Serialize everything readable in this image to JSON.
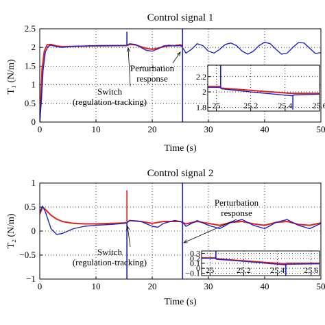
{
  "chart_data": [
    {
      "type": "line",
      "title": "Control signal 1",
      "xlabel": "Time (s)",
      "ylabel": "T₁ (N/m)",
      "xlim": [
        0,
        50
      ],
      "ylim": [
        0,
        2.5
      ],
      "x_ticks": [
        "0",
        "10",
        "20",
        "30",
        "40",
        "50"
      ],
      "y_ticks": [
        "0",
        "0.5",
        "1",
        "1.5",
        "2",
        "2.5"
      ],
      "grid": true,
      "switch_time": 15.5,
      "perturbation_time": 25.4,
      "series": [
        {
          "color": "#e02020",
          "points": [
            [
              0,
              0
            ],
            [
              0.4,
              1.4
            ],
            [
              0.8,
              1.9
            ],
            [
              1.3,
              2.07
            ],
            [
              2,
              2.08
            ],
            [
              3,
              2.04
            ],
            [
              4,
              2.02
            ],
            [
              6,
              2.03
            ],
            [
              10,
              2.04
            ],
            [
              15,
              2.05
            ],
            [
              15.5,
              2.05
            ],
            [
              16,
              2.08
            ],
            [
              17,
              2.07
            ],
            [
              18,
              2.02
            ],
            [
              19,
              1.97
            ],
            [
              20,
              1.95
            ],
            [
              21,
              1.98
            ],
            [
              22,
              2.02
            ],
            [
              23,
              2.04
            ],
            [
              24,
              2.05
            ],
            [
              25,
              2.07
            ],
            [
              25.4,
              2.05
            ]
          ]
        },
        {
          "color": "#2020c0",
          "points": [
            [
              0,
              0
            ],
            [
              0.3,
              0.6
            ],
            [
              0.6,
              1.4
            ],
            [
              1,
              1.88
            ],
            [
              1.5,
              2.03
            ],
            [
              2,
              2.06
            ],
            [
              3,
              2.02
            ],
            [
              4,
              2.0
            ],
            [
              6,
              2.03
            ],
            [
              10,
              2.05
            ],
            [
              15,
              2.05
            ],
            [
              15.5,
              2.06
            ],
            [
              16,
              2.1
            ],
            [
              17,
              2.08
            ],
            [
              18,
              2.0
            ],
            [
              19,
              1.92
            ],
            [
              20,
              1.9
            ],
            [
              21,
              1.96
            ],
            [
              22,
              2.04
            ],
            [
              23,
              2.06
            ],
            [
              24,
              2.04
            ],
            [
              25,
              2.05
            ],
            [
              25.4,
              2.0
            ],
            [
              26,
              1.85
            ],
            [
              27,
              1.95
            ],
            [
              28,
              2.1
            ],
            [
              29,
              2.05
            ],
            [
              30,
              1.9
            ],
            [
              31,
              1.85
            ],
            [
              32,
              1.95
            ],
            [
              33,
              2.08
            ],
            [
              34,
              2.12
            ],
            [
              35,
              2.05
            ],
            [
              36,
              1.9
            ],
            [
              37,
              1.82
            ],
            [
              38,
              1.9
            ],
            [
              39,
              2.05
            ],
            [
              40,
              2.14
            ],
            [
              41,
              2.1
            ],
            [
              42,
              1.95
            ],
            [
              43,
              1.82
            ],
            [
              44,
              1.85
            ],
            [
              45,
              2.0
            ],
            [
              46,
              2.13
            ],
            [
              47,
              2.12
            ],
            [
              48,
              1.98
            ],
            [
              49,
              1.84
            ],
            [
              50,
              1.86
            ]
          ]
        }
      ],
      "spikes": [
        {
          "x": 15.5,
          "y_from": 2.05,
          "y_to": 2.42,
          "color": "#2020c0"
        },
        {
          "x": 25.4,
          "y_from": 2.02,
          "y_to": 2.5,
          "color": "#2020c0"
        },
        {
          "x": 25.4,
          "y_from": 2.0,
          "y_to": 0.0,
          "color": "#2020c0"
        }
      ],
      "annotations": [
        {
          "lines": [
            "Perturbation",
            "response"
          ],
          "target": [
            25.4,
            2.0
          ]
        },
        {
          "lines": [
            "Switch",
            "(regulation-tracking)"
          ],
          "target": [
            15.5,
            2.03
          ]
        }
      ],
      "inset": {
        "xlim": [
          24.95,
          25.6
        ],
        "ylim": [
          1.75,
          2.35
        ],
        "x_ticks": [
          "25",
          "25.2",
          "25.4",
          "25.6"
        ],
        "y_ticks": [
          "1.8",
          "2",
          "2.2"
        ],
        "series": [
          {
            "color": "#e02020",
            "points": [
              [
                24.95,
                2.07
              ],
              [
                25.0,
                2.07
              ],
              [
                25.02,
                2.07
              ],
              [
                25.03,
                2.05
              ],
              [
                25.2,
                2.02
              ],
              [
                25.44,
                1.98
              ],
              [
                25.45,
                1.98
              ],
              [
                25.6,
                1.98
              ]
            ]
          },
          {
            "color": "#2020c0",
            "points": [
              [
                24.95,
                2.06
              ],
              [
                25.02,
                2.06
              ],
              [
                25.03,
                2.04
              ],
              [
                25.2,
                2.0
              ],
              [
                25.44,
                1.95
              ],
              [
                25.45,
                1.96
              ],
              [
                25.6,
                1.97
              ]
            ]
          }
        ],
        "spikes": [
          {
            "x": 25.025,
            "y_from": 2.06,
            "y_to": 2.35,
            "color": "#2020c0"
          },
          {
            "x": 25.445,
            "y_from": 1.96,
            "y_to": 1.77,
            "color": "#2020c0"
          }
        ]
      }
    },
    {
      "type": "line",
      "title": "Control signal 2",
      "xlabel": "Time (s)",
      "ylabel": "T₂ (N/m)",
      "xlim": [
        0,
        50
      ],
      "ylim": [
        -1,
        1
      ],
      "x_ticks": [
        "0",
        "10",
        "20",
        "30",
        "40",
        "50"
      ],
      "y_ticks": [
        "−1",
        "−0.5",
        "0",
        "0.5",
        "1"
      ],
      "grid": true,
      "switch_time": 15.5,
      "perturbation_time": 25.4,
      "series": [
        {
          "color": "#e02020",
          "points": [
            [
              0,
              0.35
            ],
            [
              0.5,
              0.5
            ],
            [
              1,
              0.45
            ],
            [
              2,
              0.33
            ],
            [
              3,
              0.25
            ],
            [
              4,
              0.2
            ],
            [
              6,
              0.16
            ],
            [
              8,
              0.15
            ],
            [
              10,
              0.15
            ],
            [
              13,
              0.16
            ],
            [
              15,
              0.17
            ],
            [
              15.5,
              0.18
            ],
            [
              16,
              0.22
            ],
            [
              18,
              0.2
            ],
            [
              20,
              0.16
            ],
            [
              22,
              0.2
            ],
            [
              24,
              0.2
            ],
            [
              25,
              0.2
            ],
            [
              25.4,
              0.18
            ],
            [
              26,
              0.15
            ],
            [
              28,
              0.2
            ],
            [
              30,
              0.16
            ],
            [
              32,
              0.12
            ],
            [
              34,
              0.18
            ],
            [
              36,
              0.2
            ],
            [
              38,
              0.15
            ],
            [
              40,
              0.12
            ],
            [
              42,
              0.18
            ],
            [
              44,
              0.2
            ],
            [
              46,
              0.14
            ],
            [
              48,
              0.12
            ],
            [
              50,
              0.17
            ]
          ]
        },
        {
          "color": "#2020c0",
          "points": [
            [
              0,
              0.4
            ],
            [
              0.5,
              0.52
            ],
            [
              1,
              0.4
            ],
            [
              2,
              0.05
            ],
            [
              3,
              -0.07
            ],
            [
              4,
              -0.05
            ],
            [
              6,
              0.05
            ],
            [
              8,
              0.1
            ],
            [
              10,
              0.12
            ],
            [
              13,
              0.14
            ],
            [
              15,
              0.16
            ],
            [
              15.5,
              0.17
            ],
            [
              16,
              0.22
            ],
            [
              18,
              0.2
            ],
            [
              20,
              0.1
            ],
            [
              21,
              0.08
            ],
            [
              22,
              0.16
            ],
            [
              24,
              0.22
            ],
            [
              25,
              0.2
            ],
            [
              25.4,
              0.18
            ],
            [
              26,
              0.1
            ],
            [
              28,
              0.22
            ],
            [
              30,
              0.12
            ],
            [
              32,
              0.05
            ],
            [
              34,
              0.18
            ],
            [
              36,
              0.24
            ],
            [
              38,
              0.12
            ],
            [
              40,
              0.05
            ],
            [
              42,
              0.18
            ],
            [
              44,
              0.24
            ],
            [
              46,
              0.12
            ],
            [
              48,
              0.05
            ],
            [
              50,
              0.16
            ]
          ]
        }
      ],
      "spikes": [
        {
          "x": 15.5,
          "y_from": 0.2,
          "y_to": 0.85,
          "color": "#e02020"
        },
        {
          "x": 15.5,
          "y_from": 0.17,
          "y_to": -1.0,
          "color": "#2020c0"
        },
        {
          "x": 25.4,
          "y_from": 0.18,
          "y_to": 1.0,
          "color": "#2020c0"
        },
        {
          "x": 25.4,
          "y_from": 0.18,
          "y_to": -1.0,
          "color": "#2020c0"
        }
      ],
      "annotations": [
        {
          "lines": [
            "Perturbation",
            "response"
          ],
          "target": [
            25.4,
            0.15
          ]
        },
        {
          "lines": [
            "Switch",
            "(regulation-tracking)"
          ],
          "target": [
            15.5,
            0.17
          ]
        }
      ],
      "inset": {
        "xlim": [
          24.95,
          25.65
        ],
        "ylim": [
          -0.15,
          0.35
        ],
        "x_ticks": [
          "25",
          "25.2",
          "25.4",
          "25.6"
        ],
        "y_ticks": [
          "−0.1",
          "0",
          "0.1",
          "0.2",
          "0.3"
        ],
        "series": [
          {
            "color": "#e02020",
            "points": [
              [
                24.95,
                0.21
              ],
              [
                25.03,
                0.21
              ],
              [
                25.04,
                0.19
              ],
              [
                25.2,
                0.15
              ],
              [
                25.44,
                0.09
              ],
              [
                25.46,
                0.1
              ],
              [
                25.65,
                0.1
              ]
            ]
          },
          {
            "color": "#2020c0",
            "points": [
              [
                24.95,
                0.2
              ],
              [
                25.03,
                0.2
              ],
              [
                25.04,
                0.18
              ],
              [
                25.2,
                0.14
              ],
              [
                25.44,
                0.07
              ],
              [
                25.46,
                0.08
              ],
              [
                25.65,
                0.09
              ]
            ]
          }
        ],
        "spikes": [
          {
            "x": 25.035,
            "y_from": 0.2,
            "y_to": 0.35,
            "color": "#2020c0"
          },
          {
            "x": 25.45,
            "y_from": 0.08,
            "y_to": -0.15,
            "color": "#2020c0"
          }
        ]
      }
    }
  ]
}
